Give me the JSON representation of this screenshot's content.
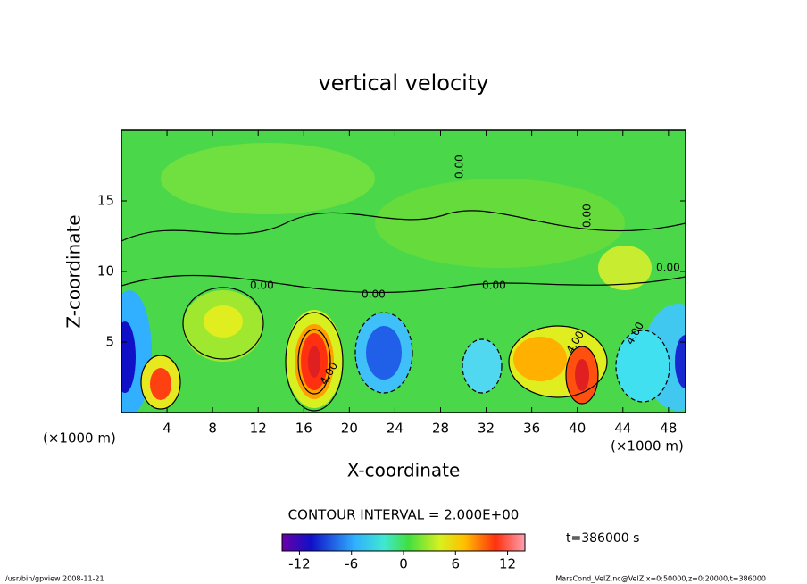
{
  "chart_data": {
    "type": "contour",
    "title": "vertical velocity",
    "x_label": "X-coordinate",
    "y_label": "Z-coordinate",
    "x_unit_left": "(×1000 m)",
    "x_unit_right": "(×1000 m)",
    "xlim": [
      0,
      49.5
    ],
    "xticks": [
      4,
      8,
      12,
      16,
      20,
      24,
      28,
      32,
      36,
      40,
      44,
      48
    ],
    "ylim": [
      0,
      20
    ],
    "yticks": [
      5,
      10,
      15
    ],
    "contour_labels": [
      "0.00",
      "0.00",
      "0.00",
      "0.00",
      "0.00",
      "0.00",
      "4.00",
      "4.00",
      "4.00"
    ],
    "contour_interval": "CONTOUR INTERVAL = 2.000E+00",
    "time_label": "t=386000 s",
    "colorbar": {
      "lim": [
        -14,
        14
      ],
      "ticks": [
        -12,
        -6,
        0,
        6,
        12
      ]
    },
    "footer_left": "/usr/bin/gpview  2008-11-21",
    "footer_right": "MarsCond_VelZ.nc@VelZ,x=0:50000,z=0:20000,t=386000"
  }
}
